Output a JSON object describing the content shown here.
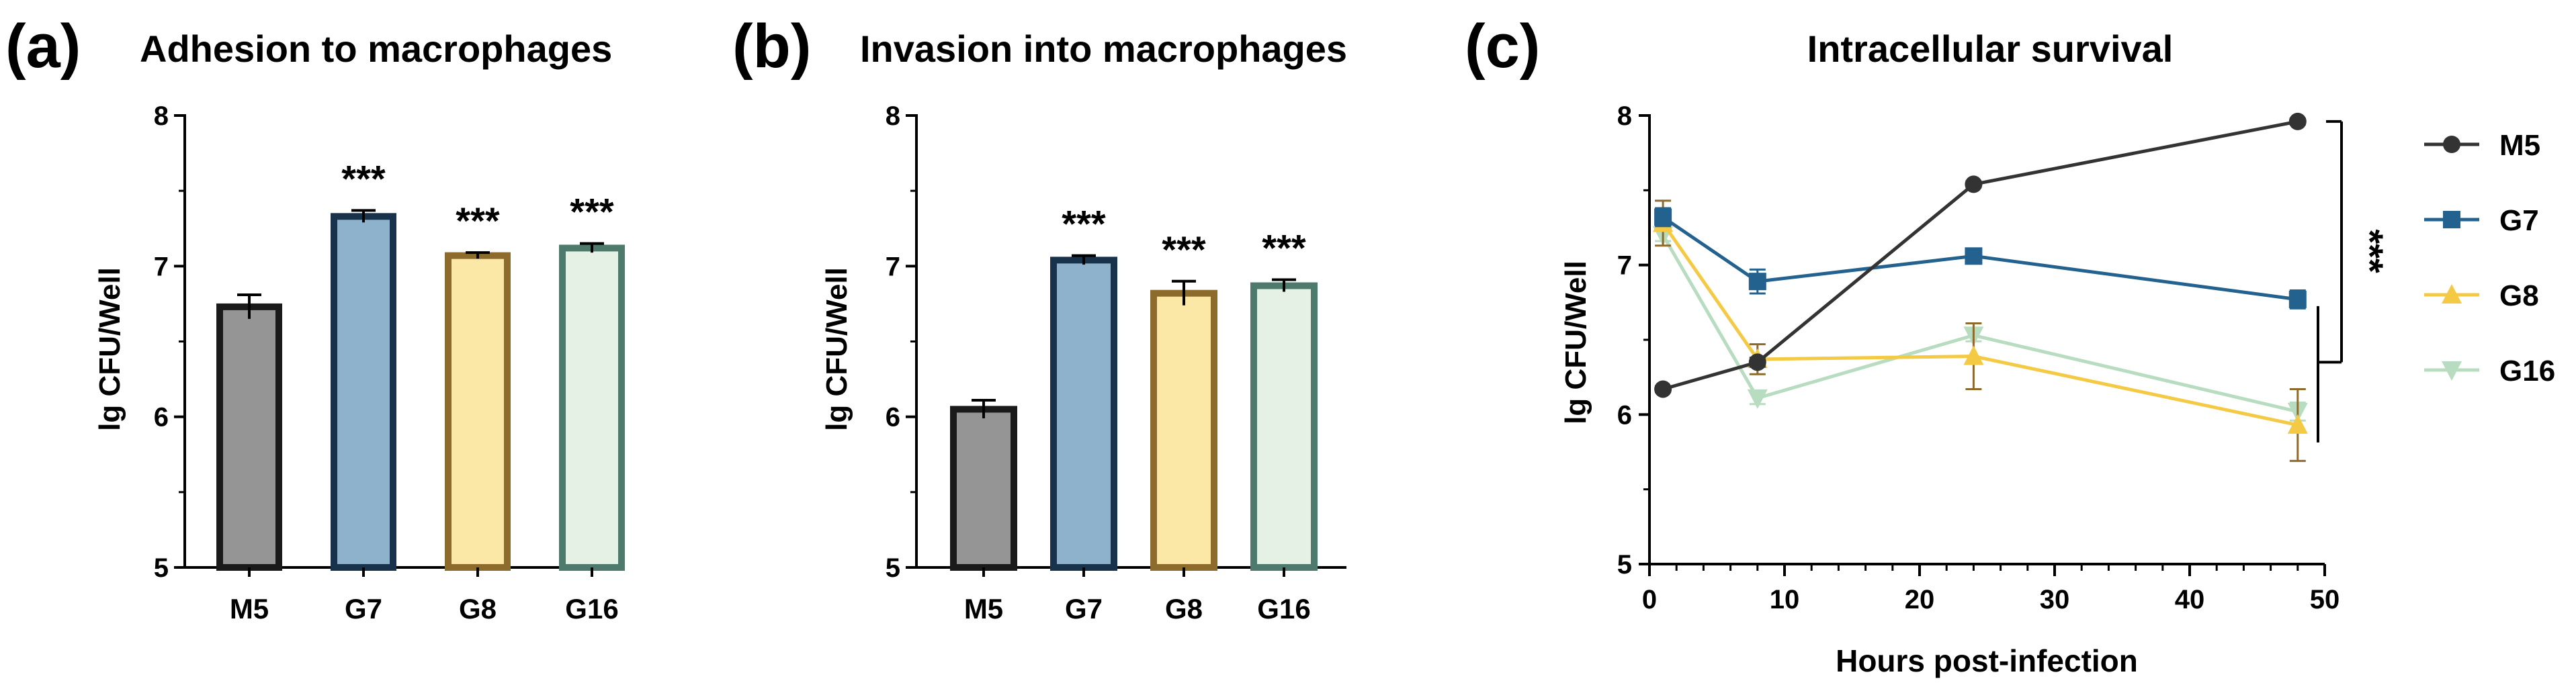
{
  "chart_data": [
    {
      "type": "bar",
      "panel_label": "(a)",
      "title": "Adhesion to macrophages",
      "xlabel": "",
      "ylabel": "lg CFU/Well",
      "ylim": [
        5,
        8
      ],
      "yticks": [
        "5",
        "6",
        "7",
        "8"
      ],
      "categories": [
        "M5",
        "G7",
        "G8",
        "G16"
      ],
      "values": [
        6.73,
        7.33,
        7.07,
        7.12
      ],
      "errors": [
        0.08,
        0.04,
        0.02,
        0.03
      ],
      "significance": [
        "",
        "***",
        "***",
        "***"
      ],
      "fill_colors": [
        "#959595",
        "#8eb2cc",
        "#fbe8a6",
        "#e4f1e4"
      ],
      "edge_colors": [
        "#1a1a1a",
        "#17324a",
        "#8c6b2c",
        "#4d7a6c"
      ]
    },
    {
      "type": "bar",
      "panel_label": "(b)",
      "title": "Invasion into macrophages",
      "xlabel": "",
      "ylabel": "lg CFU/Well",
      "ylim": [
        5,
        8
      ],
      "yticks": [
        "5",
        "6",
        "7",
        "8"
      ],
      "categories": [
        "M5",
        "G7",
        "G8",
        "G16"
      ],
      "values": [
        6.05,
        7.04,
        6.82,
        6.87
      ],
      "errors": [
        0.06,
        0.03,
        0.08,
        0.04
      ],
      "significance": [
        "",
        "***",
        "***",
        "***"
      ],
      "fill_colors": [
        "#959595",
        "#8eb2cc",
        "#fbe8a6",
        "#e4f1e4"
      ],
      "edge_colors": [
        "#1a1a1a",
        "#17324a",
        "#8c6b2c",
        "#4d7a6c"
      ]
    },
    {
      "type": "line",
      "panel_label": "(c)",
      "title": "Intracellular survival",
      "xlabel": "Hours post-infection",
      "ylabel": "lg CFU/Well",
      "xlim": [
        0,
        50
      ],
      "ylim": [
        5,
        8
      ],
      "xticks": [
        "0",
        "10",
        "20",
        "30",
        "40",
        "50"
      ],
      "yticks": [
        "5",
        "6",
        "7",
        "8"
      ],
      "x": [
        1,
        8,
        24,
        48
      ],
      "series": [
        {
          "name": "M5",
          "marker": "circle",
          "color": "#333333",
          "values": [
            6.17,
            6.35,
            7.54,
            7.96
          ],
          "errors": [
            0.02,
            0.03,
            0.02,
            0.02
          ]
        },
        {
          "name": "G7",
          "marker": "square",
          "color": "#23618e",
          "values": [
            7.32,
            6.89,
            7.06,
            6.77
          ],
          "errors": [
            0.06,
            0.08,
            0.04,
            0.06
          ]
        },
        {
          "name": "G8",
          "marker": "triangle-up",
          "color": "#f4c944",
          "values": [
            7.28,
            6.37,
            6.39,
            5.93
          ],
          "errors": [
            0.15,
            0.1,
            0.22,
            0.24
          ]
        },
        {
          "name": "G16",
          "marker": "triangle-down",
          "color": "#b7dcc0",
          "values": [
            7.2,
            6.11,
            6.53,
            6.02
          ],
          "errors": [
            0.04,
            0.04,
            0.04,
            0.06
          ]
        }
      ],
      "legend_position": "right",
      "significance": "***"
    }
  ]
}
